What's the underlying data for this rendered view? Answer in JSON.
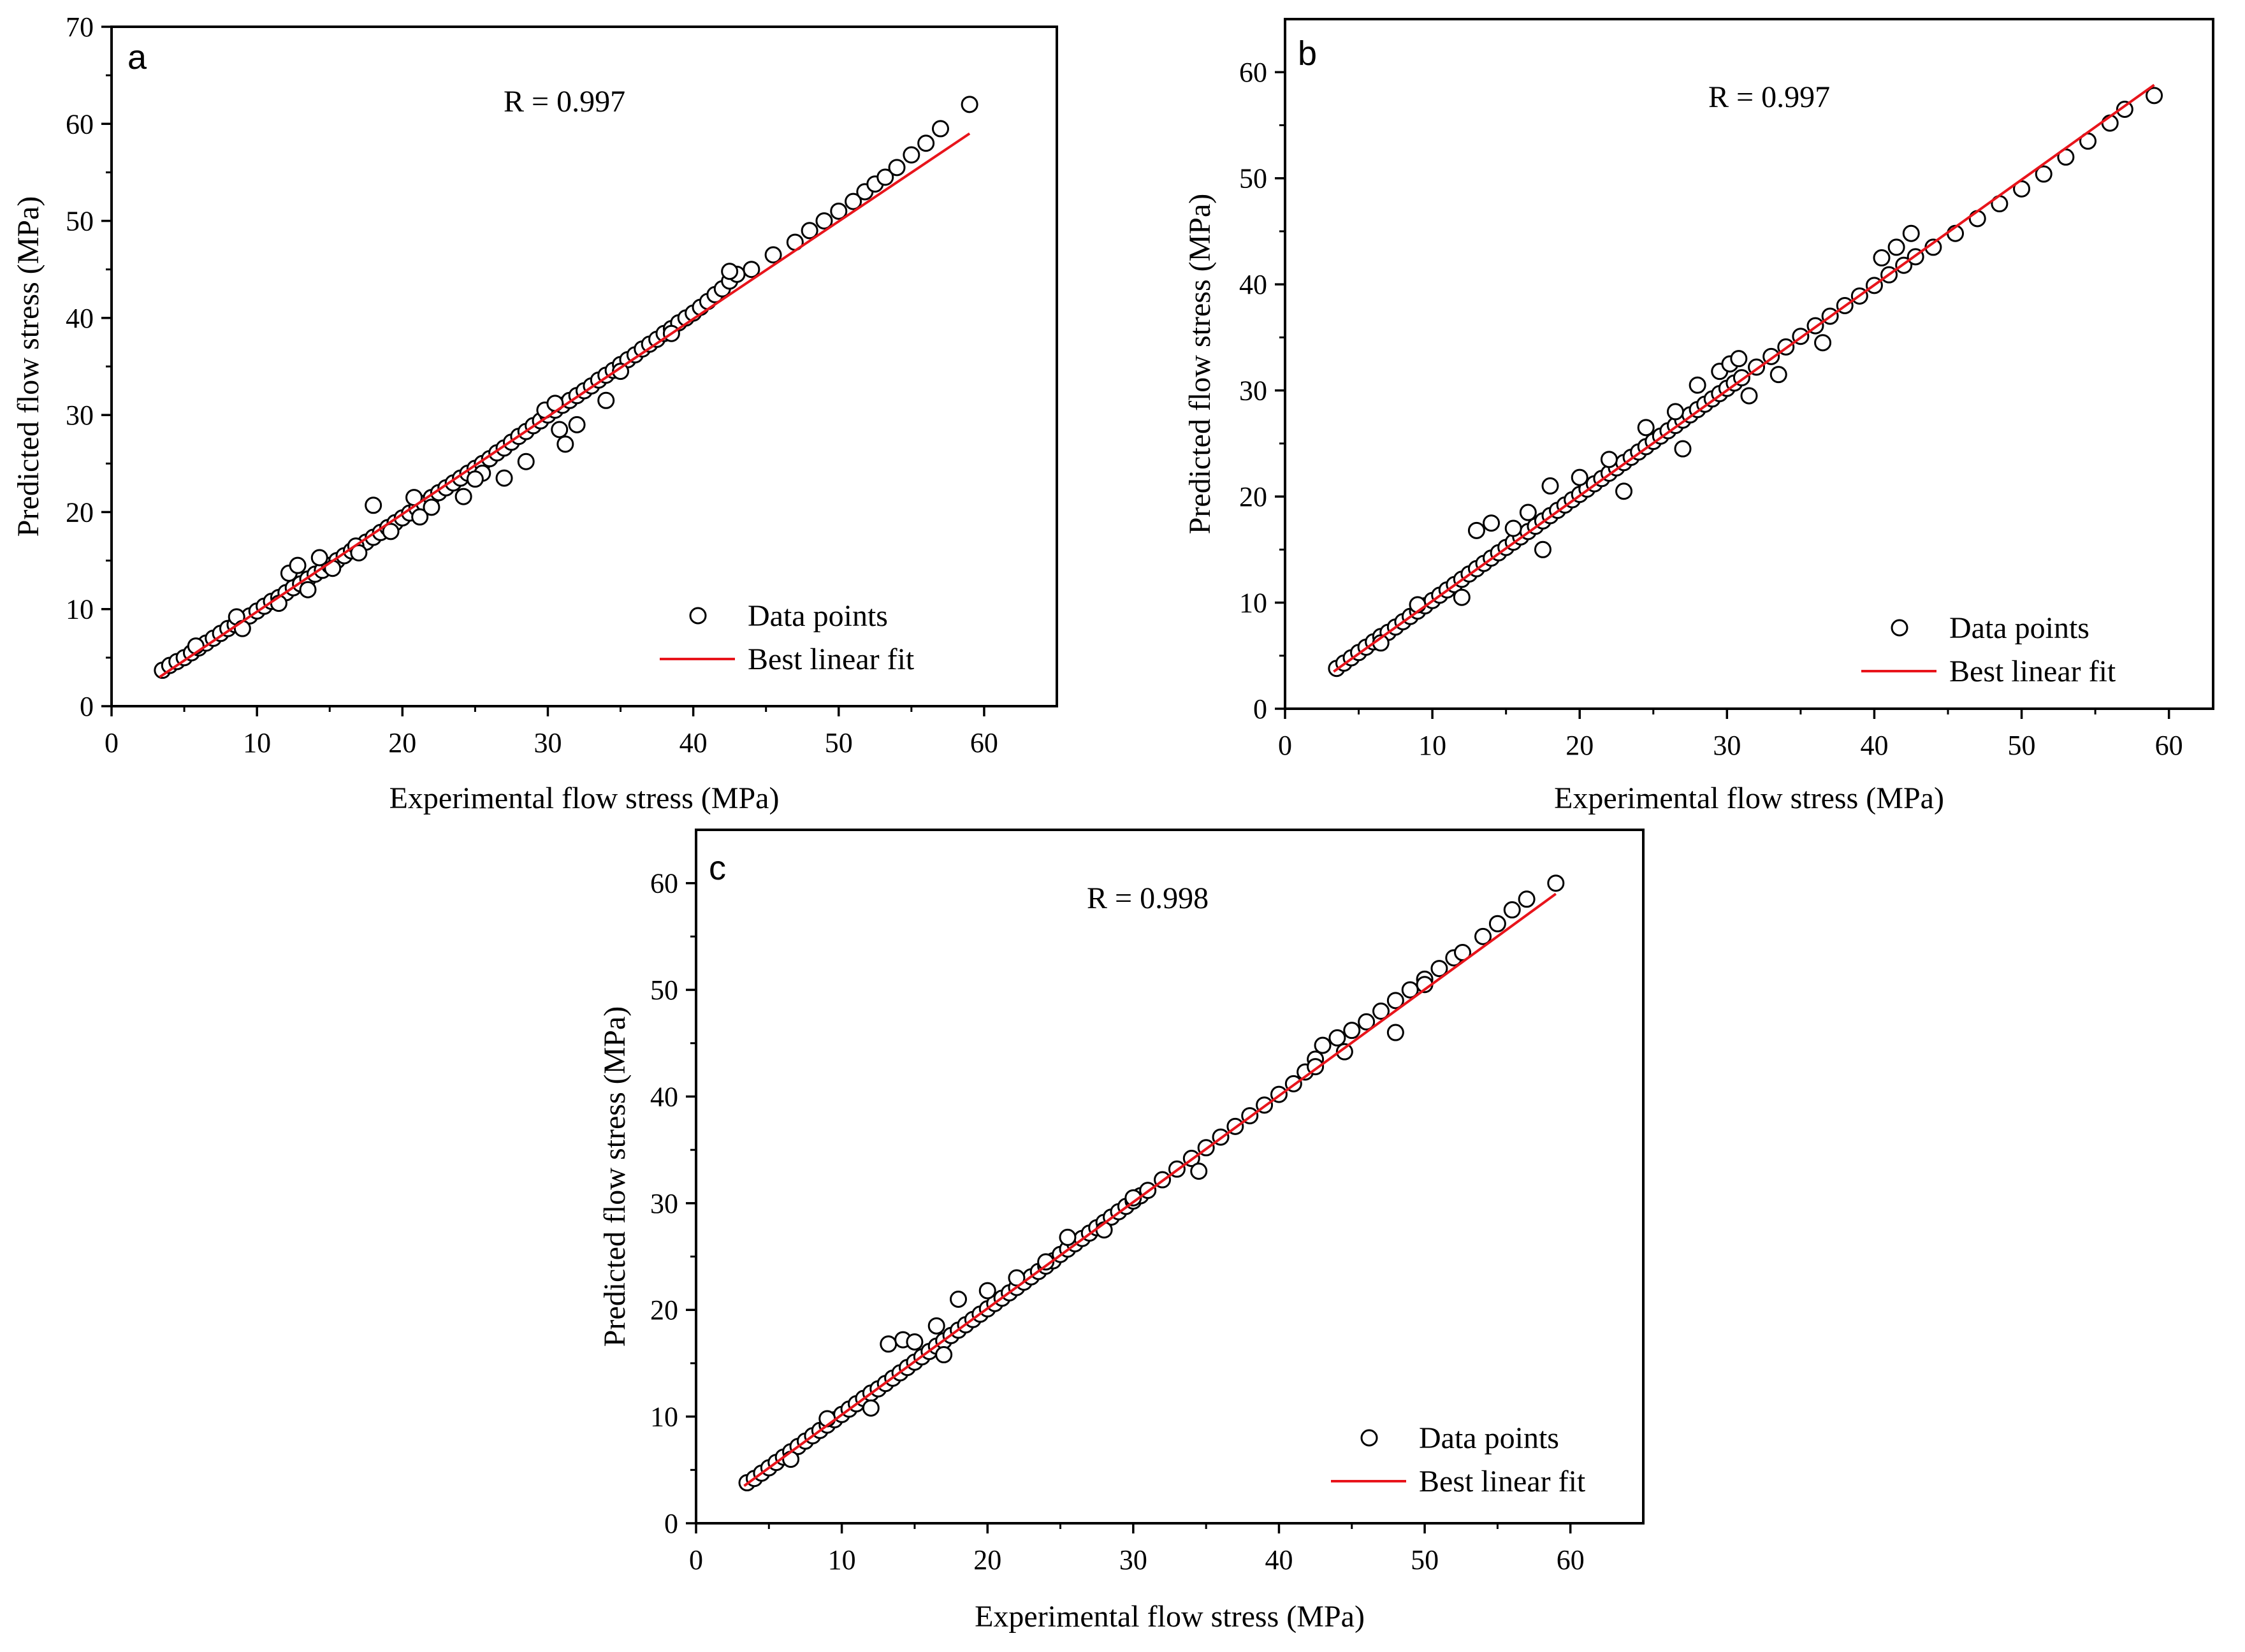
{
  "figure": {
    "panels": [
      "a",
      "b",
      "c"
    ]
  },
  "chart_data": [
    {
      "panel": "a",
      "type": "scatter",
      "annotation": "R = 0.997",
      "xlabel": "Experimental flow stress (MPa)",
      "ylabel": "Predicted  flow stress (MPa)",
      "xlim": [
        0,
        65
      ],
      "ylim": [
        0,
        70
      ],
      "xticks": [
        0,
        10,
        20,
        30,
        40,
        50,
        60
      ],
      "yticks": [
        0,
        10,
        20,
        30,
        40,
        50,
        60,
        70
      ],
      "legend": {
        "position": "bottom-right",
        "entries": [
          "Data points",
          "Best linear fit"
        ]
      },
      "colors": {
        "points": "#000000",
        "fit": "#e8141b"
      },
      "fit": {
        "x": [
          3.3,
          59.0
        ],
        "y": [
          3.0,
          59.0
        ]
      },
      "series": [
        {
          "name": "Data points",
          "x": [
            3.5,
            4.0,
            4.5,
            5.0,
            5.5,
            6.0,
            6.5,
            7.0,
            7.5,
            8.0,
            8.5,
            9.0,
            9.5,
            10.0,
            10.5,
            11.0,
            11.5,
            12.0,
            12.5,
            13.0,
            13.5,
            14.0,
            14.5,
            15.0,
            15.5,
            16.0,
            16.5,
            17.0,
            17.5,
            18.0,
            18.5,
            19.0,
            19.5,
            20.0,
            20.5,
            21.0,
            21.5,
            22.0,
            22.5,
            23.0,
            23.5,
            24.0,
            24.5,
            25.0,
            25.5,
            26.0,
            26.5,
            27.0,
            27.5,
            28.0,
            28.5,
            29.0,
            29.5,
            30.0,
            30.5,
            31.0,
            31.5,
            32.0,
            32.5,
            33.0,
            33.5,
            34.0,
            34.5,
            35.0,
            35.5,
            36.0,
            36.5,
            37.0,
            37.5,
            38.0,
            38.5,
            39.0,
            39.5,
            40.0,
            40.5,
            41.0,
            41.5,
            42.0,
            42.5,
            43.0,
            44.0,
            45.5,
            47.0,
            48.0,
            49.0,
            50.0,
            51.0,
            51.8,
            52.5,
            53.2,
            54.0,
            55.0,
            56.0,
            57.0,
            59.0,
            5.8,
            8.6,
            9.0,
            12.2,
            12.8,
            13.5,
            14.3,
            15.2,
            16.8,
            18.0,
            19.2,
            20.8,
            21.2,
            22.0,
            24.2,
            25.5,
            27.0,
            28.5,
            29.8,
            30.5,
            31.2,
            32.0,
            35.0,
            38.5,
            42.5,
            11.5,
            17.0,
            25.0,
            30.8,
            34.0
          ],
          "y": [
            3.7,
            4.2,
            4.6,
            5.0,
            5.5,
            6.0,
            6.5,
            7.0,
            7.5,
            8.0,
            8.4,
            8.9,
            9.3,
            9.8,
            10.3,
            10.8,
            11.2,
            11.7,
            12.2,
            12.6,
            13.1,
            13.6,
            14.0,
            14.5,
            15.0,
            15.5,
            16.0,
            16.4,
            16.9,
            17.4,
            17.9,
            18.4,
            18.9,
            19.4,
            19.9,
            20.4,
            20.9,
            21.5,
            22.0,
            22.5,
            23.0,
            23.5,
            24.0,
            24.5,
            25.0,
            25.5,
            26.1,
            26.6,
            27.2,
            27.8,
            28.3,
            28.9,
            29.4,
            30.0,
            30.5,
            31.0,
            31.5,
            32.0,
            32.5,
            33.0,
            33.6,
            34.1,
            34.6,
            35.2,
            35.7,
            36.2,
            36.8,
            37.3,
            37.8,
            38.4,
            38.9,
            39.5,
            40.0,
            40.5,
            41.1,
            41.7,
            42.4,
            43.0,
            43.8,
            44.5,
            45.0,
            46.5,
            47.8,
            49.0,
            50.0,
            51.0,
            52.0,
            53.0,
            53.8,
            54.5,
            55.5,
            56.8,
            58.0,
            59.5,
            62.0,
            6.2,
            9.2,
            8.0,
            13.7,
            14.5,
            12.0,
            15.3,
            14.2,
            16.5,
            20.7,
            18.0,
            21.5,
            19.5,
            20.5,
            21.6,
            24.0,
            23.5,
            25.2,
            30.5,
            31.2,
            27.0,
            29.0,
            34.5,
            38.4,
            44.8,
            10.6,
            15.8,
            23.4,
            28.5,
            31.5
          ]
        }
      ]
    },
    {
      "panel": "b",
      "type": "scatter",
      "annotation": "R = 0.997",
      "xlabel": "Experimental flow stress (MPa)",
      "ylabel": "Predicted  flow stress (MPa)",
      "xlim": [
        0,
        63
      ],
      "ylim": [
        0,
        65
      ],
      "xticks": [
        0,
        10,
        20,
        30,
        40,
        50,
        60
      ],
      "yticks": [
        0,
        10,
        20,
        30,
        40,
        50,
        60
      ],
      "legend": {
        "position": "bottom-right",
        "entries": [
          "Data points",
          "Best linear fit"
        ]
      },
      "colors": {
        "points": "#000000",
        "fit": "#e8141b"
      },
      "fit": {
        "x": [
          3.3,
          59.0
        ],
        "y": [
          3.5,
          58.8
        ]
      },
      "series": [
        {
          "name": "Data points",
          "x": [
            3.5,
            4.0,
            4.5,
            5.0,
            5.5,
            6.0,
            6.5,
            7.0,
            7.5,
            8.0,
            8.5,
            9.0,
            9.5,
            10.0,
            10.5,
            11.0,
            11.5,
            12.0,
            12.5,
            13.0,
            13.5,
            14.0,
            14.5,
            15.0,
            15.5,
            16.0,
            16.5,
            17.0,
            17.5,
            18.0,
            18.5,
            19.0,
            19.5,
            20.0,
            20.5,
            21.0,
            21.5,
            22.0,
            22.5,
            23.0,
            23.5,
            24.0,
            24.5,
            25.0,
            25.5,
            26.0,
            26.5,
            27.0,
            27.5,
            28.0,
            28.5,
            29.0,
            29.5,
            30.0,
            30.5,
            31.0,
            32.0,
            33.0,
            34.0,
            35.0,
            36.0,
            37.0,
            38.0,
            39.0,
            40.0,
            41.0,
            42.0,
            42.8,
            44.0,
            45.5,
            47.0,
            48.5,
            50.0,
            51.5,
            53.0,
            54.5,
            56.0,
            57.0,
            59.0,
            13.0,
            14.0,
            15.5,
            16.5,
            18.0,
            20.0,
            22.0,
            24.5,
            26.5,
            28.0,
            29.5,
            30.2,
            30.8,
            31.5,
            12.0,
            17.5,
            23.0,
            27.0,
            9.0,
            40.5,
            41.5,
            42.5,
            36.5,
            33.5,
            6.5
          ],
          "y": [
            3.8,
            4.3,
            4.8,
            5.3,
            5.8,
            6.3,
            6.8,
            7.2,
            7.7,
            8.2,
            8.7,
            9.2,
            9.7,
            10.2,
            10.7,
            11.2,
            11.7,
            12.2,
            12.7,
            13.2,
            13.7,
            14.2,
            14.7,
            15.2,
            15.7,
            16.2,
            16.7,
            17.2,
            17.7,
            18.2,
            18.7,
            19.2,
            19.7,
            20.2,
            20.7,
            21.2,
            21.7,
            22.2,
            22.7,
            23.2,
            23.7,
            24.2,
            24.7,
            25.2,
            25.7,
            26.2,
            26.7,
            27.2,
            27.7,
            28.2,
            28.7,
            29.2,
            29.7,
            30.2,
            30.7,
            31.2,
            32.2,
            33.2,
            34.1,
            35.1,
            36.1,
            37.0,
            38.0,
            38.9,
            39.9,
            40.9,
            41.8,
            42.6,
            43.5,
            44.8,
            46.2,
            47.6,
            49.0,
            50.4,
            52.0,
            53.5,
            55.2,
            56.5,
            57.8,
            16.8,
            17.5,
            17.0,
            18.5,
            21.0,
            21.8,
            23.5,
            26.5,
            28.0,
            30.5,
            31.8,
            32.5,
            33.0,
            29.5,
            10.5,
            15.0,
            20.5,
            24.5,
            9.8,
            42.5,
            43.5,
            44.8,
            34.5,
            31.5,
            6.2
          ]
        }
      ]
    },
    {
      "panel": "c",
      "type": "scatter",
      "annotation": "R = 0.998",
      "xlabel": "Experimental flow stress (MPa)",
      "ylabel": "Predicted  flow stress (MPa)",
      "xlim": [
        0,
        65
      ],
      "ylim": [
        0,
        65
      ],
      "xticks": [
        0,
        10,
        20,
        30,
        40,
        50,
        60
      ],
      "yticks": [
        0,
        10,
        20,
        30,
        40,
        50,
        60
      ],
      "legend": {
        "position": "bottom-right",
        "entries": [
          "Data points",
          "Best linear fit"
        ]
      },
      "colors": {
        "points": "#000000",
        "fit": "#e8141b"
      },
      "fit": {
        "x": [
          3.3,
          59.0
        ],
        "y": [
          3.5,
          59.0
        ]
      },
      "series": [
        {
          "name": "Data points",
          "x": [
            3.5,
            4.0,
            4.5,
            5.0,
            5.5,
            6.0,
            6.5,
            7.0,
            7.5,
            8.0,
            8.5,
            9.0,
            9.5,
            10.0,
            10.5,
            11.0,
            11.5,
            12.0,
            12.5,
            13.0,
            13.5,
            14.0,
            14.5,
            15.0,
            15.5,
            16.0,
            16.5,
            17.0,
            17.5,
            18.0,
            18.5,
            19.0,
            19.5,
            20.0,
            20.5,
            21.0,
            21.5,
            22.0,
            22.5,
            23.0,
            23.5,
            24.0,
            24.5,
            25.0,
            25.5,
            26.0,
            26.5,
            27.0,
            27.5,
            28.0,
            28.5,
            29.0,
            29.5,
            30.0,
            30.5,
            31.0,
            32.0,
            33.0,
            34.0,
            35.0,
            36.0,
            37.0,
            38.0,
            39.0,
            40.0,
            41.0,
            41.8,
            42.5,
            43.0,
            44.0,
            45.0,
            46.0,
            47.0,
            48.0,
            49.0,
            50.0,
            51.0,
            52.0,
            52.6,
            54.0,
            55.0,
            56.0,
            57.0,
            59.0,
            13.2,
            14.2,
            15.0,
            16.5,
            18.0,
            20.0,
            22.0,
            24.0,
            25.5,
            28.0,
            30.0,
            34.5,
            42.5,
            48.0,
            12.0,
            17.0,
            9.0,
            6.5,
            44.5,
            50.0
          ],
          "y": [
            3.8,
            4.2,
            4.7,
            5.2,
            5.7,
            6.2,
            6.7,
            7.2,
            7.7,
            8.2,
            8.7,
            9.2,
            9.7,
            10.2,
            10.7,
            11.2,
            11.7,
            12.2,
            12.6,
            13.1,
            13.6,
            14.1,
            14.6,
            15.1,
            15.6,
            16.1,
            16.6,
            17.1,
            17.6,
            18.1,
            18.6,
            19.1,
            19.6,
            20.1,
            20.6,
            21.1,
            21.6,
            22.1,
            22.6,
            23.1,
            23.6,
            24.1,
            24.6,
            25.2,
            25.7,
            26.2,
            26.7,
            27.2,
            27.7,
            28.2,
            28.7,
            29.2,
            29.7,
            30.2,
            30.7,
            31.2,
            32.2,
            33.2,
            34.2,
            35.2,
            36.2,
            37.2,
            38.2,
            39.2,
            40.2,
            41.2,
            42.3,
            43.5,
            44.8,
            45.5,
            46.2,
            47.0,
            48.0,
            49.0,
            50.0,
            51.0,
            52.0,
            53.0,
            53.5,
            55.0,
            56.2,
            57.5,
            58.5,
            60.0,
            16.8,
            17.2,
            17.0,
            18.5,
            21.0,
            21.8,
            23.0,
            24.5,
            26.8,
            27.5,
            30.5,
            33.0,
            42.8,
            46.0,
            10.8,
            15.8,
            9.8,
            6.0,
            44.2,
            50.5
          ]
        }
      ]
    }
  ]
}
